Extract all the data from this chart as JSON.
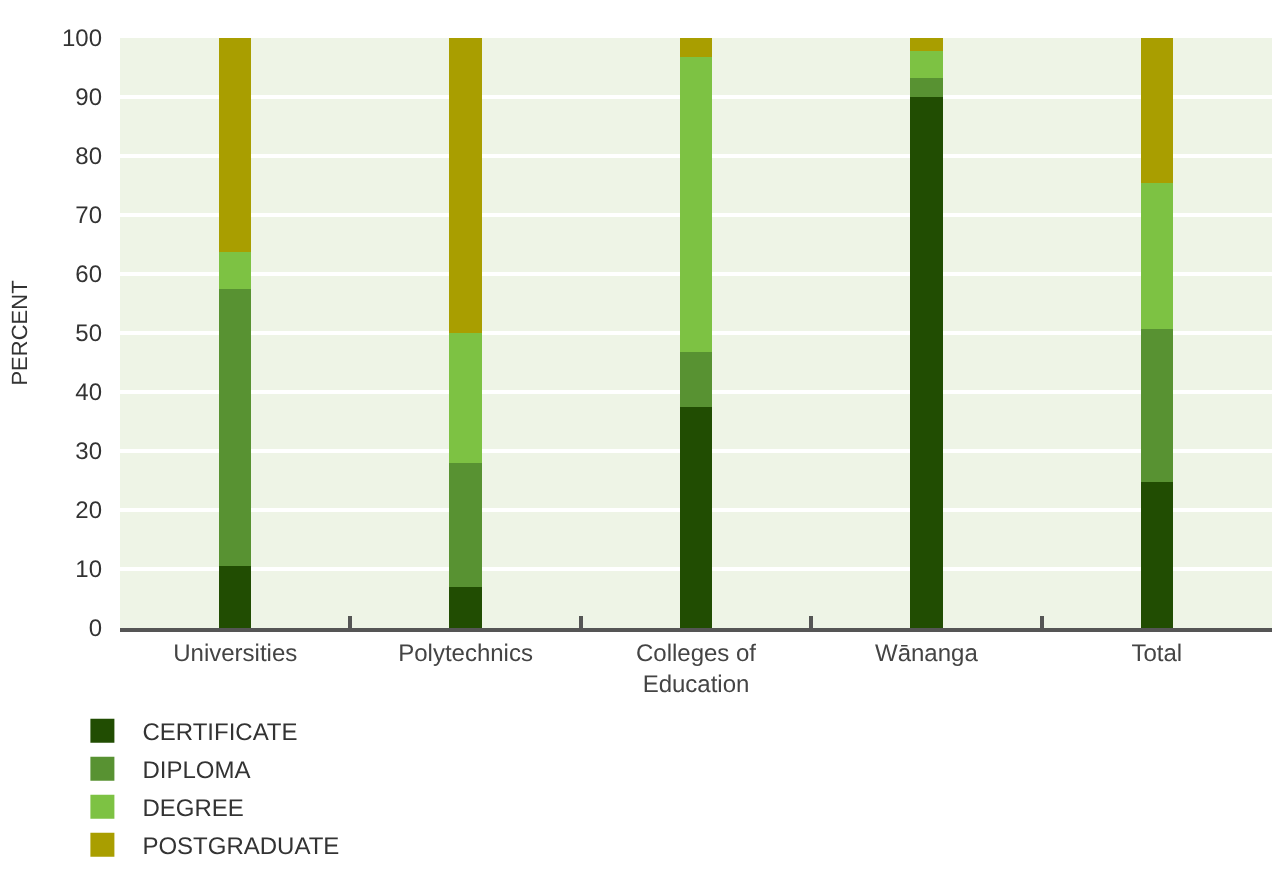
{
  "chart_data": {
    "type": "bar",
    "stacked": true,
    "categories": [
      "Universities",
      "Polytechnics",
      "Colleges of Education",
      "Wānanga",
      "Total"
    ],
    "series": [
      {
        "name": "CERTIFICATE",
        "color": "#214d02",
        "values": [
          10.5,
          7,
          37.5,
          90,
          24.7
        ]
      },
      {
        "name": "DIPLOMA",
        "color": "#589232",
        "values": [
          47,
          21,
          9.2,
          3.3,
          26
        ]
      },
      {
        "name": "DEGREE",
        "color": "#7dc243",
        "values": [
          6.3,
          22,
          50,
          4.5,
          24.7
        ]
      },
      {
        "name": "POSTGRADUATE",
        "color": "#a99e00",
        "values": [
          36.2,
          50,
          3.3,
          2.2,
          24.6
        ]
      }
    ],
    "ylabel": "PERCENT",
    "ylim": [
      0,
      100
    ],
    "yticks": [
      0,
      10,
      20,
      30,
      40,
      50,
      60,
      70,
      80,
      90,
      100
    ],
    "grid": "y",
    "legend": "bottom left"
  }
}
